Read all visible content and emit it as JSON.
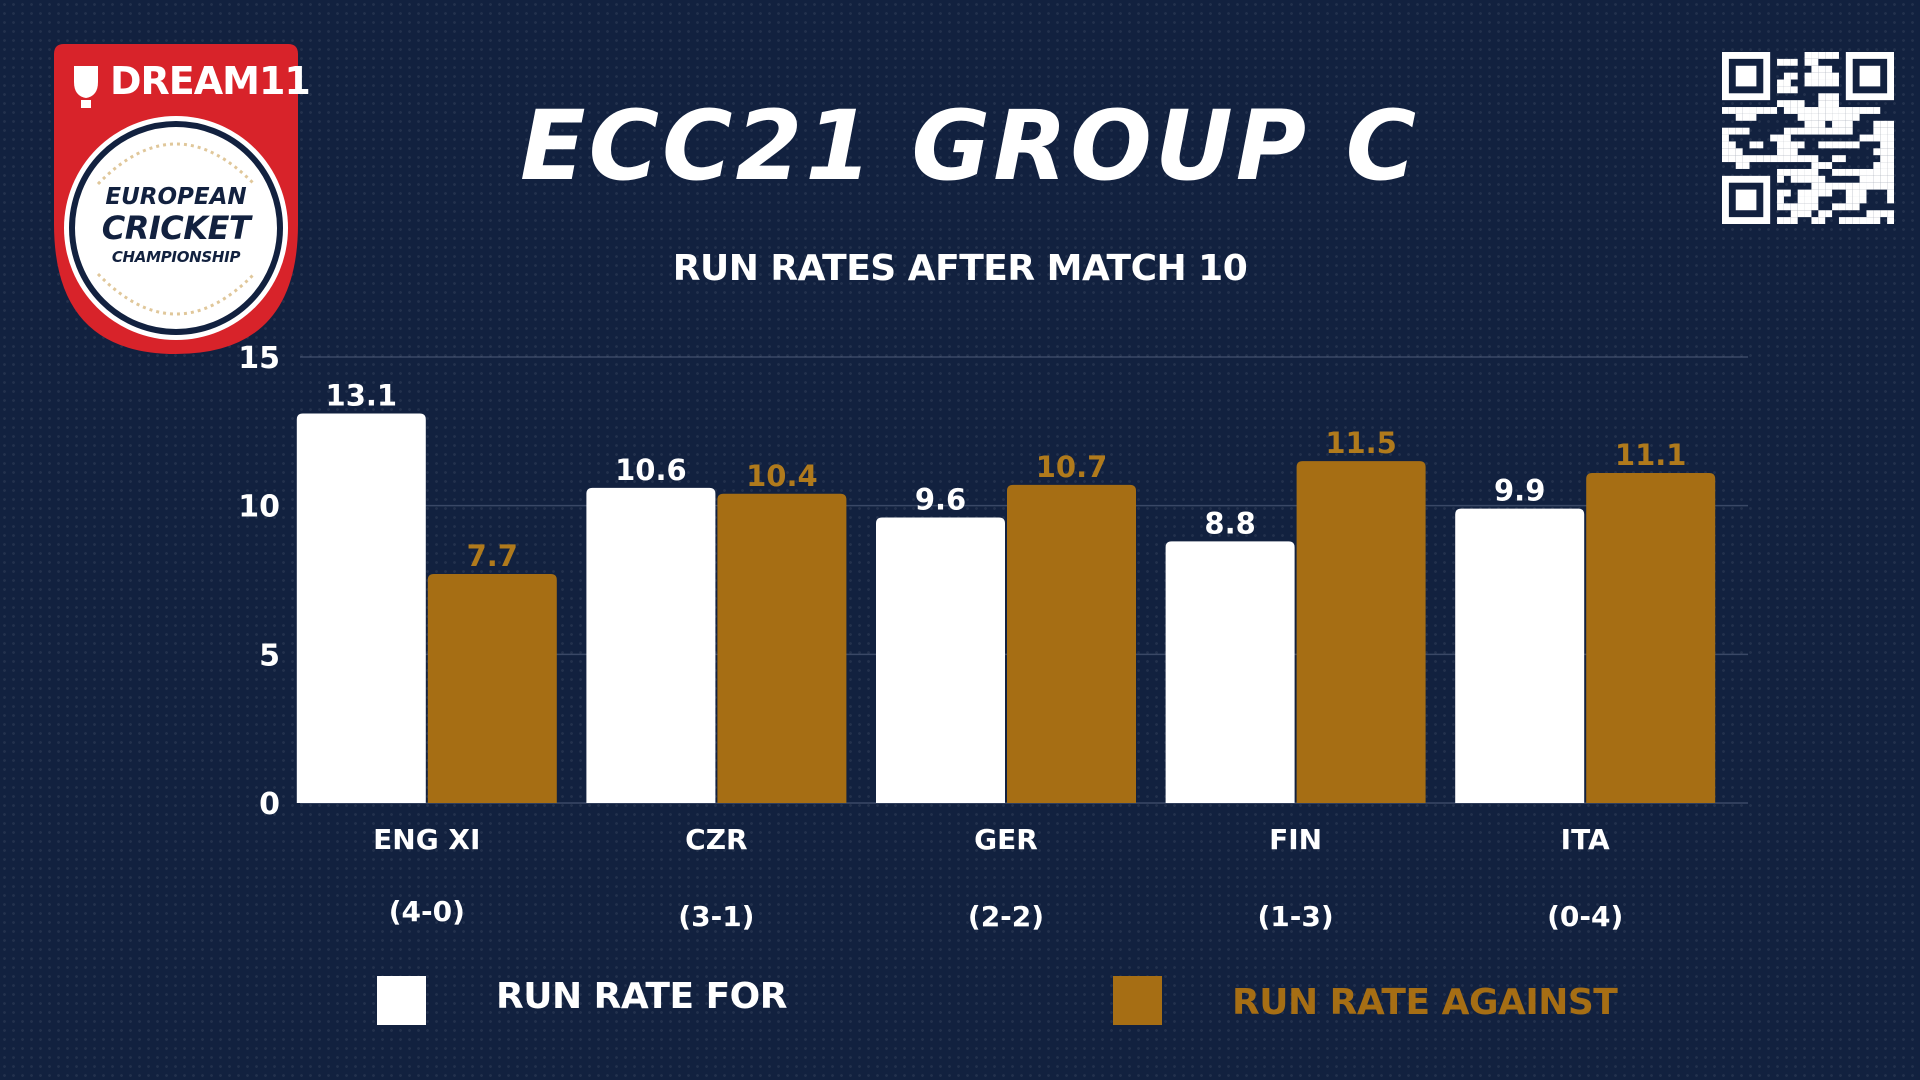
{
  "logo": {
    "brand": "DREAM11",
    "line1": "EUROPEAN",
    "line2": "CRICKET",
    "line3": "CHAMPIONSHIP"
  },
  "title": "ECC21 GROUP C",
  "qr_icon": "qr-code-icon",
  "colors": {
    "background": "#12213f",
    "for": "#ffffff",
    "against": "#a66e14",
    "logo_red": "#d8232a"
  },
  "chart_data": {
    "type": "bar",
    "title": "RUN RATES AFTER MATCH 10",
    "categories": [
      "ENG XI",
      "CZR",
      "GER",
      "FIN",
      "ITA"
    ],
    "records": [
      "(4-0)",
      "(3-1)",
      "(2-2)",
      "(1-3)",
      "(0-4)"
    ],
    "series": [
      {
        "name": "RUN RATE FOR",
        "values": [
          13.1,
          10.6,
          9.6,
          8.8,
          9.9
        ]
      },
      {
        "name": "RUN RATE AGAINST",
        "values": [
          7.7,
          10.4,
          10.7,
          11.5,
          11.1
        ]
      }
    ],
    "ylim": [
      0,
      15
    ],
    "yticks": [
      0,
      5,
      10,
      15
    ],
    "grid": true,
    "legend_position": "bottom"
  }
}
